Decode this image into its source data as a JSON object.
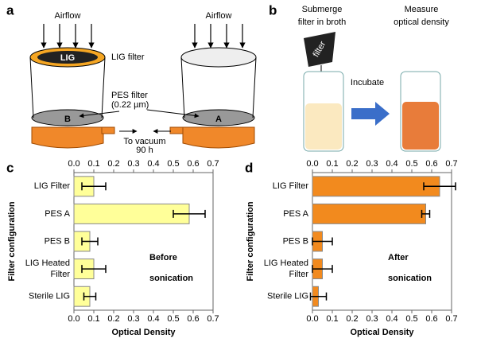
{
  "diagram": {
    "panel_a": "a",
    "airflow_left": "Airflow",
    "airflow_right": "Airflow",
    "lig": "LIG",
    "lig_filter": "LIG filter",
    "pes_filter": [
      "PES filter",
      "(0.22 µm)"
    ],
    "label_b": "B",
    "label_a": "A",
    "vacuum": [
      "To vacuum",
      "90 h"
    ],
    "panel_b": "b",
    "submerge": [
      "Submerge",
      "filter in broth"
    ],
    "measure": [
      "Measure",
      "optical density"
    ],
    "filter": "filter",
    "incubate": "Incubate"
  },
  "chart_data": [
    {
      "type": "hbar",
      "panel": "c",
      "xlabel": "Optical Density",
      "ylabel": "Filter configuration",
      "annotation": [
        "Before",
        "sonication"
      ],
      "categories": [
        "LIG Filter",
        "PES A",
        "PES B",
        "LIG Heated Filter",
        "Sterile LIG"
      ],
      "values": [
        0.1,
        0.58,
        0.08,
        0.1,
        0.08
      ],
      "errors": [
        0.06,
        0.08,
        0.04,
        0.06,
        0.03
      ],
      "color": "#ffff99",
      "xlim": [
        0,
        0.7
      ],
      "xticks": [
        {
          "value": 0,
          "label": "0.0"
        },
        0.1,
        0.2,
        0.3,
        0.4,
        0.5,
        0.6,
        0.7
      ]
    },
    {
      "type": "hbar",
      "panel": "d",
      "xlabel": "Optical Density",
      "ylabel": "Filter configuration",
      "annotation": [
        "After",
        "sonication"
      ],
      "categories": [
        "LIG Filter",
        "PES A",
        "PES B",
        "LIG Heated Filter",
        "Sterile LIG"
      ],
      "values": [
        0.64,
        0.57,
        0.05,
        0.05,
        0.03
      ],
      "errors": [
        0.08,
        0.02,
        0.05,
        0.05,
        0.04
      ],
      "color": "#f28a1e",
      "xlim": [
        0,
        0.7
      ],
      "xticks": [
        {
          "value": 0,
          "label": "0.0"
        },
        0.1,
        0.2,
        0.3,
        0.4,
        0.5,
        0.6,
        0.7
      ]
    }
  ]
}
